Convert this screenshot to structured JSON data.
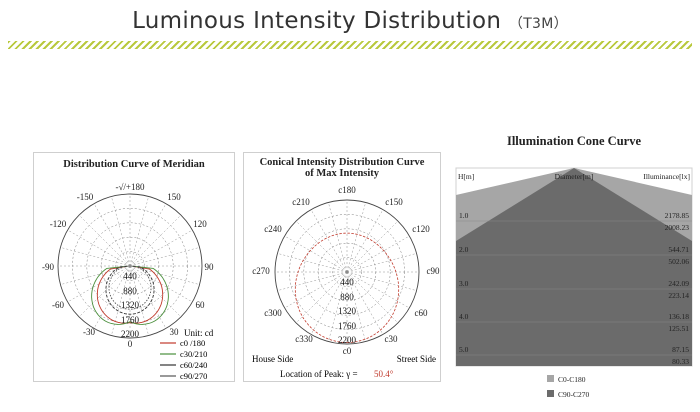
{
  "header": {
    "title": "Luminous Intensity Distribution",
    "subtitle": "（T3M）"
  },
  "meridian": {
    "title": "Distribution Curve of Meridian",
    "angle_labels": {
      "top": "-√/+180",
      "a150": "150",
      "an150": "-150",
      "a120": "120",
      "an120": "-120",
      "a90": "90",
      "an90": "-90",
      "a60": "60",
      "an60": "-60",
      "a30": "30",
      "an30": "-30",
      "a0": "0"
    },
    "radial_labels": [
      "440",
      "880",
      "1320",
      "1760",
      "2200"
    ],
    "unit": "Unit: cd",
    "legend": [
      {
        "label": "c0 /180",
        "color": "#c0392b"
      },
      {
        "label": "c30/210",
        "color": "#4a8f3c"
      },
      {
        "label": "c60/240",
        "color": "#333333"
      },
      {
        "label": "c90/270",
        "color": "#555555"
      }
    ]
  },
  "conical": {
    "title_line1": "Conical Intensity Distribution Curve",
    "title_line2": "of  Max Intensity",
    "angle_labels": {
      "c180": "c180",
      "c150": "c150",
      "c210": "c210",
      "c120": "c120",
      "c240": "c240",
      "c90": "c90",
      "c270": "c270",
      "c60": "c60",
      "c300": "c300",
      "c30": "c30",
      "c330": "c330",
      "c0": "c0"
    },
    "radial_labels": [
      "440",
      "880",
      "1320",
      "1760",
      "2200"
    ],
    "house_side": "House Side",
    "street_side": "Street Side",
    "peak_label": "Location of Peak:  γ  =",
    "peak_value": "50.4°",
    "peak_color": "#c0392b"
  },
  "cone": {
    "title": "Illumination Cone Curve",
    "h_label": "H[m]",
    "diameter_label": "Diameter[m]",
    "illuminance_label": "Illuminance[lx]",
    "rows": [
      {
        "h": "1.0",
        "v1": "2178.85",
        "v2": "2008.23"
      },
      {
        "h": "2.0",
        "v1": "544.71",
        "v2": "502.06"
      },
      {
        "h": "3.0",
        "v1": "242.09",
        "v2": "223.14"
      },
      {
        "h": "4.0",
        "v1": "136.18",
        "v2": "125.51"
      },
      {
        "h": "5.0",
        "v1": "87.15",
        "v2": "80.33"
      }
    ],
    "legend": [
      {
        "label": "C0-C180",
        "color": "#a6a6a6"
      },
      {
        "label": "C90-C270",
        "color": "#6b6b6b"
      }
    ]
  }
}
